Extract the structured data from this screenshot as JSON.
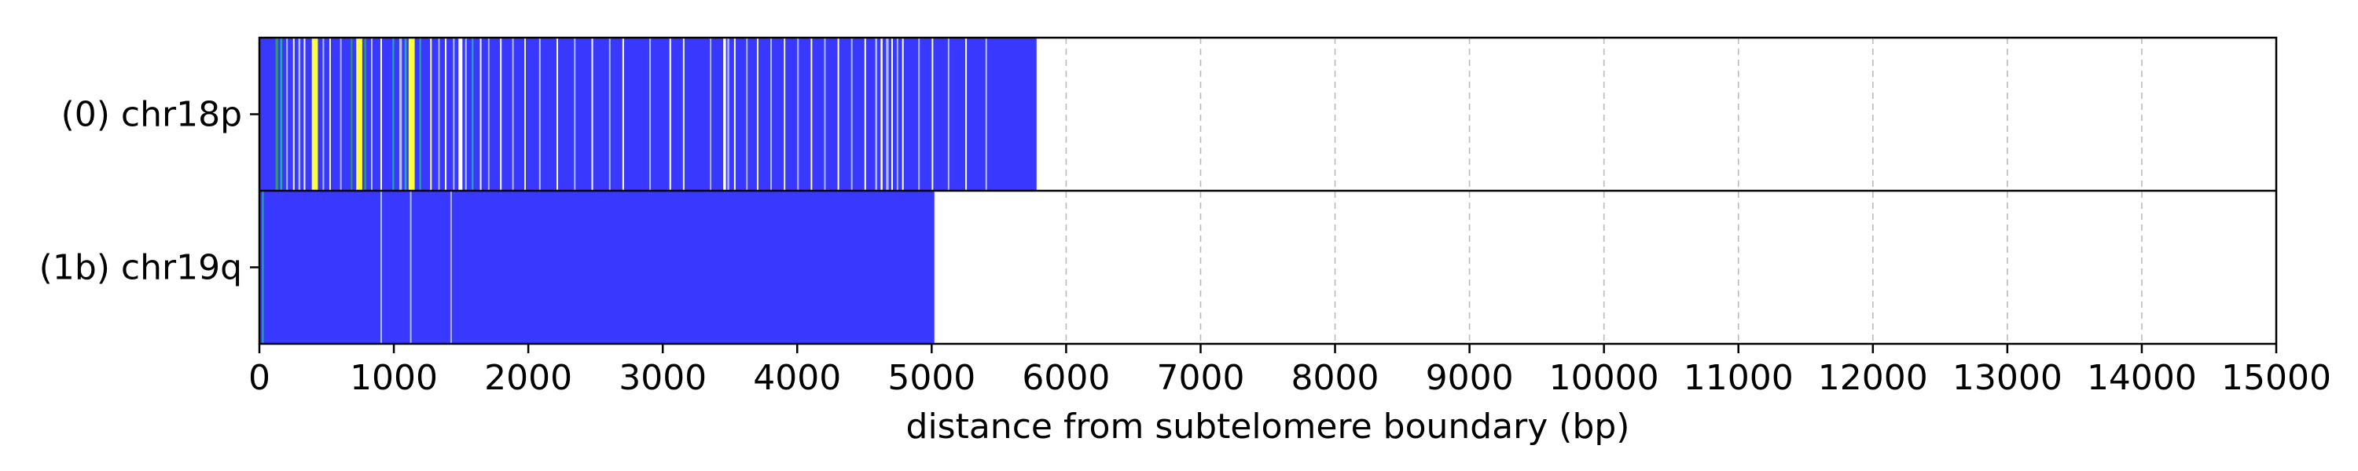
{
  "chart_data": {
    "type": "heatmap",
    "xlabel": "distance from subtelomere boundary (bp)",
    "xlim": [
      0,
      15000
    ],
    "x_ticks": [
      0,
      1000,
      2000,
      3000,
      4000,
      5000,
      6000,
      7000,
      8000,
      9000,
      10000,
      11000,
      12000,
      13000,
      14000,
      15000
    ],
    "x_tick_labels": [
      "0",
      "1000",
      "2000",
      "3000",
      "4000",
      "5000",
      "6000",
      "7000",
      "8000",
      "9000",
      "10000",
      "11000",
      "12000",
      "13000",
      "14000",
      "15000"
    ],
    "grid": "vertical dashed",
    "colors": {
      "base": "#3838ff",
      "light": "#b0bcff",
      "white": "#ffffff",
      "yellow": "#ffff40",
      "green": "#2aa04a",
      "teal": "#2aa8a8",
      "grid": "#bbbbbb"
    },
    "tracks": [
      {
        "label": "(0) chr18p",
        "length": 5780,
        "features": [
          [
            120,
            20,
            "green"
          ],
          [
            155,
            15,
            "teal"
          ],
          [
            200,
            10,
            "light"
          ],
          [
            250,
            10,
            "white"
          ],
          [
            290,
            15,
            "light"
          ],
          [
            330,
            10,
            "white"
          ],
          [
            390,
            45,
            "yellow"
          ],
          [
            470,
            10,
            "light"
          ],
          [
            520,
            10,
            "white"
          ],
          [
            600,
            10,
            "light"
          ],
          [
            680,
            12,
            "green"
          ],
          [
            720,
            45,
            "yellow"
          ],
          [
            780,
            15,
            "green"
          ],
          [
            830,
            10,
            "light"
          ],
          [
            900,
            10,
            "white"
          ],
          [
            990,
            12,
            "teal"
          ],
          [
            1040,
            20,
            "light"
          ],
          [
            1080,
            15,
            "teal"
          ],
          [
            1110,
            45,
            "yellow"
          ],
          [
            1190,
            12,
            "teal"
          ],
          [
            1270,
            10,
            "white"
          ],
          [
            1330,
            10,
            "light"
          ],
          [
            1380,
            10,
            "white"
          ],
          [
            1440,
            12,
            "light"
          ],
          [
            1480,
            30,
            "white"
          ],
          [
            1530,
            12,
            "light"
          ],
          [
            1580,
            12,
            "teal"
          ],
          [
            1640,
            10,
            "white"
          ],
          [
            1700,
            10,
            "light"
          ],
          [
            1790,
            10,
            "white"
          ],
          [
            1880,
            10,
            "light"
          ],
          [
            1970,
            10,
            "white"
          ],
          [
            2080,
            10,
            "light"
          ],
          [
            2210,
            10,
            "white"
          ],
          [
            2340,
            10,
            "light"
          ],
          [
            2470,
            10,
            "white"
          ],
          [
            2600,
            10,
            "light"
          ],
          [
            2700,
            10,
            "white"
          ],
          [
            2900,
            10,
            "light"
          ],
          [
            3050,
            10,
            "white"
          ],
          [
            3150,
            10,
            "white"
          ],
          [
            3350,
            10,
            "light"
          ],
          [
            3450,
            20,
            "white"
          ],
          [
            3480,
            15,
            "light"
          ],
          [
            3530,
            10,
            "white"
          ],
          [
            3620,
            10,
            "light"
          ],
          [
            3700,
            10,
            "white"
          ],
          [
            3800,
            10,
            "light"
          ],
          [
            3900,
            10,
            "white"
          ],
          [
            4000,
            10,
            "light"
          ],
          [
            4100,
            10,
            "white"
          ],
          [
            4200,
            10,
            "light"
          ],
          [
            4300,
            10,
            "white"
          ],
          [
            4400,
            10,
            "light"
          ],
          [
            4500,
            10,
            "white"
          ],
          [
            4580,
            15,
            "light"
          ],
          [
            4620,
            15,
            "white"
          ],
          [
            4660,
            20,
            "light"
          ],
          [
            4700,
            10,
            "white"
          ],
          [
            4740,
            10,
            "light"
          ],
          [
            4780,
            10,
            "white"
          ],
          [
            4900,
            10,
            "light"
          ],
          [
            5000,
            10,
            "white"
          ],
          [
            5120,
            10,
            "light"
          ],
          [
            5250,
            10,
            "white"
          ],
          [
            5400,
            10,
            "light"
          ]
        ]
      },
      {
        "label": "(1b) chr19q",
        "length": 5020,
        "features": [
          [
            20,
            10,
            "teal"
          ],
          [
            900,
            8,
            "light"
          ],
          [
            1120,
            8,
            "light"
          ],
          [
            1420,
            8,
            "light"
          ]
        ]
      }
    ]
  }
}
